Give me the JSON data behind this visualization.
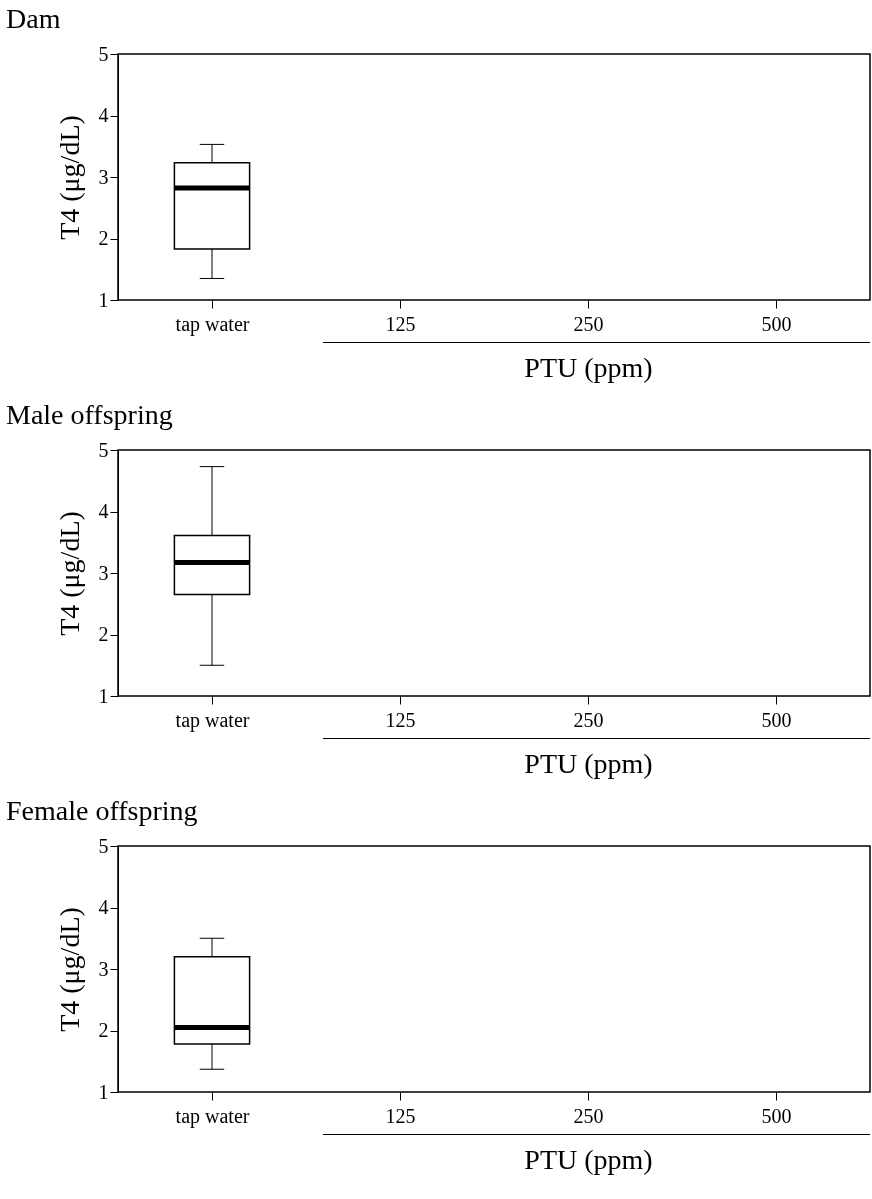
{
  "chart_data": [
    {
      "type": "box",
      "title": "Dam",
      "xlabel": "PTU (ppm)",
      "ylabel": "T4 (μg/dL)",
      "categories": [
        "tap water",
        "125",
        "250",
        "500"
      ],
      "ylim": [
        1,
        5
      ],
      "yticks": [
        1,
        2,
        3,
        4,
        5
      ],
      "grid": false,
      "boxes": [
        {
          "low": 1.35,
          "q1": 1.83,
          "median": 2.82,
          "q3": 3.23,
          "high": 3.53
        },
        null,
        null,
        null
      ]
    },
    {
      "type": "box",
      "title": "Male offspring",
      "xlabel": "PTU (ppm)",
      "ylabel": "T4 (μg/dL)",
      "categories": [
        "tap water",
        "125",
        "250",
        "500"
      ],
      "ylim": [
        1,
        5
      ],
      "yticks": [
        1,
        2,
        3,
        4,
        5
      ],
      "grid": false,
      "boxes": [
        {
          "low": 1.5,
          "q1": 2.65,
          "median": 3.17,
          "q3": 3.61,
          "high": 4.73
        },
        null,
        null,
        null
      ]
    },
    {
      "type": "box",
      "title": "Female offspring",
      "xlabel": "PTU (ppm)",
      "ylabel": "T4 (μg/dL)",
      "categories": [
        "tap water",
        "125",
        "250",
        "500"
      ],
      "ylim": [
        1,
        5
      ],
      "yticks": [
        1,
        2,
        3,
        4,
        5
      ],
      "grid": false,
      "boxes": [
        {
          "low": 1.37,
          "q1": 1.78,
          "median": 2.05,
          "q3": 3.2,
          "high": 3.5
        },
        null,
        null,
        null
      ]
    }
  ]
}
